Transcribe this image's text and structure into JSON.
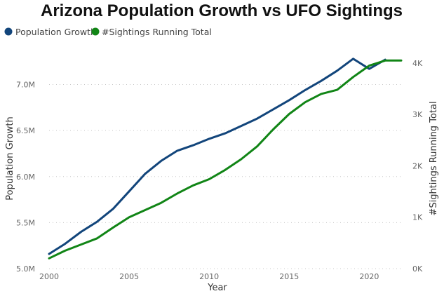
{
  "chart_data": {
    "type": "line",
    "title": "Arizona Population Growth vs UFO Sightings",
    "xlabel": "Year",
    "ylabel": "Population Growth",
    "y2label": "#Sightings Running Total",
    "xlim": [
      2000,
      2022
    ],
    "ylim": [
      5000000,
      7400000
    ],
    "y2lim": [
      0,
      4300
    ],
    "x_ticks": [
      {
        "value": 2000,
        "label": "2000"
      },
      {
        "value": 2005,
        "label": "2005"
      },
      {
        "value": 2010,
        "label": "2010"
      },
      {
        "value": 2015,
        "label": "2015"
      },
      {
        "value": 2020,
        "label": "2020"
      }
    ],
    "y_ticks": [
      {
        "value": 5000000,
        "label": "5.0M"
      },
      {
        "value": 5500000,
        "label": "5.5M"
      },
      {
        "value": 6000000,
        "label": "6.0M"
      },
      {
        "value": 6500000,
        "label": "6.5M"
      },
      {
        "value": 7000000,
        "label": "7.0M"
      }
    ],
    "y2_ticks": [
      {
        "value": 0,
        "label": "0K"
      },
      {
        "value": 1000,
        "label": "1K"
      },
      {
        "value": 2000,
        "label": "2K"
      },
      {
        "value": 3000,
        "label": "3K"
      },
      {
        "value": 4000,
        "label": "4K"
      }
    ],
    "grid": true,
    "legend_position": "top-left",
    "series": [
      {
        "name": "Population Growth",
        "axis": "left",
        "color": "#12457b",
        "x": [
          2000,
          2001,
          2002,
          2003,
          2004,
          2005,
          2006,
          2007,
          2008,
          2009,
          2010,
          2011,
          2012,
          2013,
          2014,
          2015,
          2016,
          2017,
          2018,
          2019,
          2020,
          2021
        ],
        "values": [
          5160000,
          5270000,
          5400000,
          5510000,
          5650000,
          5840000,
          6030000,
          6170000,
          6280000,
          6340000,
          6410000,
          6470000,
          6550000,
          6630000,
          6730000,
          6830000,
          6940000,
          7040000,
          7150000,
          7280000,
          7170000,
          7270000
        ]
      },
      {
        "name": "#Sightings Running Total",
        "axis": "right",
        "color": "#118516",
        "x": [
          2000,
          2001,
          2002,
          2003,
          2004,
          2005,
          2006,
          2007,
          2008,
          2009,
          2010,
          2011,
          2012,
          2013,
          2014,
          2015,
          2016,
          2017,
          2018,
          2019,
          2020,
          2021,
          2022
        ],
        "values": [
          200,
          350,
          470,
          590,
          800,
          1000,
          1140,
          1280,
          1460,
          1620,
          1740,
          1920,
          2130,
          2380,
          2710,
          3010,
          3240,
          3400,
          3480,
          3730,
          3950,
          4050,
          4050
        ]
      }
    ]
  }
}
